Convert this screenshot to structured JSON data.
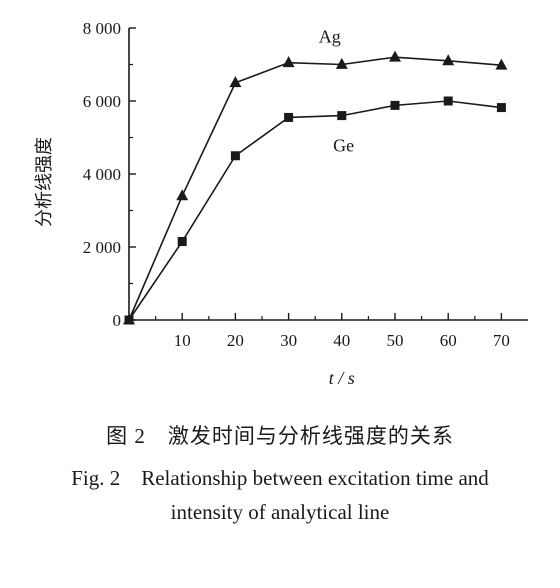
{
  "chart_data": {
    "type": "line",
    "x": [
      0,
      10,
      20,
      30,
      40,
      50,
      60,
      70
    ],
    "x_ticks": [
      "10",
      "20",
      "30",
      "40",
      "50",
      "60",
      "70"
    ],
    "y_ticks": [
      "0",
      "2 000",
      "4 000",
      "6 000",
      "8 000"
    ],
    "xlim": [
      0,
      75
    ],
    "ylim": [
      0,
      8000
    ],
    "xlabel": "t / s",
    "ylabel": "分析线强度",
    "grid": false,
    "series": [
      {
        "name": "Ag",
        "marker": "triangle",
        "values": [
          0,
          3400,
          6500,
          7050,
          7000,
          7200,
          7100,
          6980
        ]
      },
      {
        "name": "Ge",
        "marker": "square",
        "values": [
          0,
          2150,
          4500,
          5550,
          5600,
          5880,
          6000,
          5820
        ]
      }
    ]
  },
  "caption": {
    "cn": "图 2　激发时间与分析线强度的关系",
    "en_line1": "Fig. 2　Relationship between excitation time and",
    "en_line2": "intensity of analytical line"
  }
}
